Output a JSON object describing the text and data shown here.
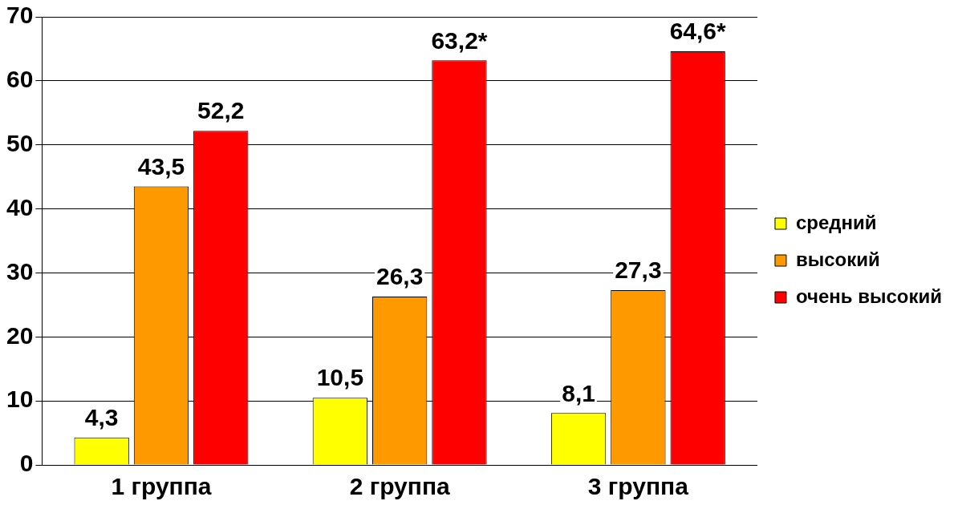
{
  "chart_data": {
    "type": "bar",
    "categories": [
      "1 группа",
      "2 группа",
      "3 группа"
    ],
    "series": [
      {
        "name": "средний",
        "color": "#ffff00",
        "values": [
          4.3,
          10.5,
          8.1
        ],
        "value_labels": [
          "4,3",
          "10,5",
          "8,1"
        ]
      },
      {
        "name": "высокий",
        "color": "#ff9900",
        "values": [
          43.5,
          26.3,
          27.3
        ],
        "value_labels": [
          "43,5",
          "26,3",
          "27,3"
        ]
      },
      {
        "name": "очень высокий",
        "color": "#ff0000",
        "values": [
          52.2,
          63.2,
          64.6
        ],
        "value_labels": [
          "52,2",
          "63,2*",
          "64,6*"
        ]
      }
    ],
    "ylim": [
      0,
      70
    ],
    "yticks": [
      0,
      10,
      20,
      30,
      40,
      50,
      60,
      70
    ],
    "grid": "y",
    "legend": "right"
  }
}
